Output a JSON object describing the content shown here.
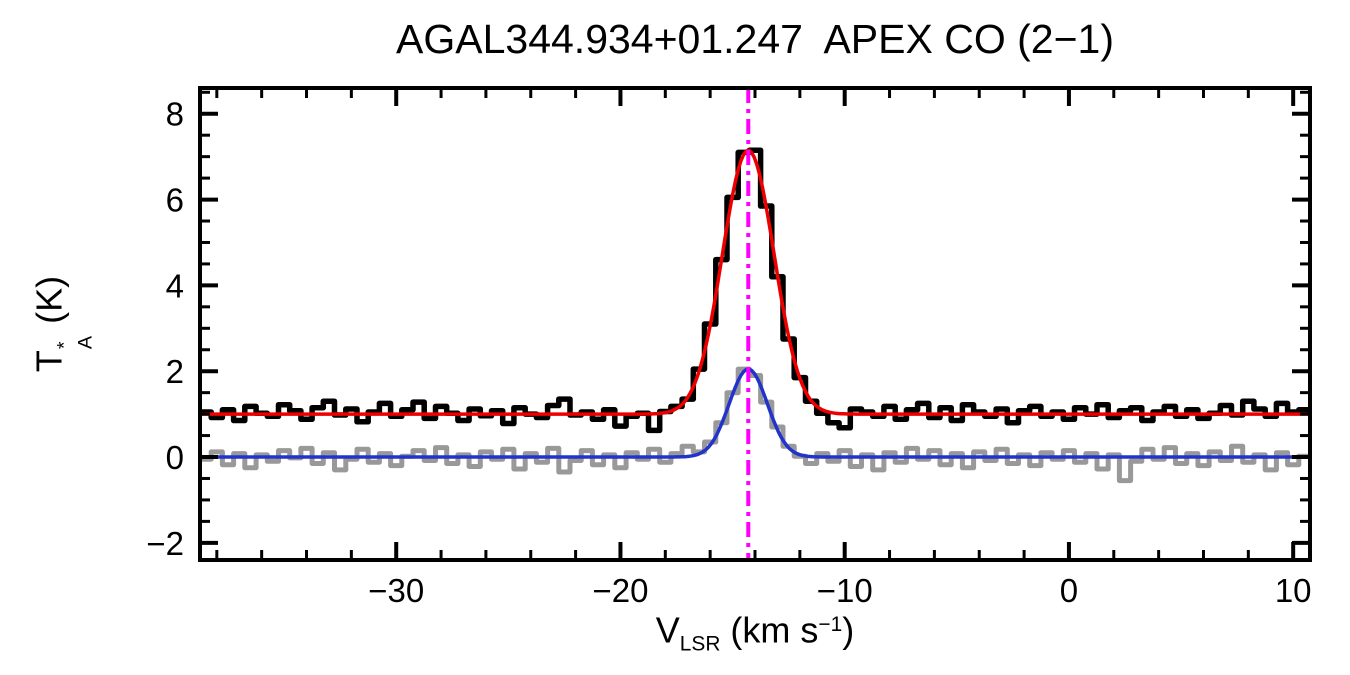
{
  "chart_data": {
    "type": "line",
    "title": "AGAL344.934+01.247  APEX CO (2−1)",
    "xlabel": "V_LSR (km s^−1)",
    "ylabel": "T_A^* (K)",
    "xlabel_parts": {
      "symbol": "V",
      "subscript": "LSR",
      "unit_prefix": "(km s",
      "unit_exponent": "−1",
      "unit_suffix": ")"
    },
    "ylabel_parts": {
      "symbol": "T",
      "superscript": "*",
      "subscript": "A",
      "unit": "(K)"
    },
    "xlim": [
      -38.75,
      10.75
    ],
    "ylim": [
      -2.4,
      8.6
    ],
    "x_ticks": [
      -30,
      -20,
      -10,
      0,
      10
    ],
    "x_tick_labels": [
      "−30",
      "−20",
      "−10",
      "0",
      "10"
    ],
    "x_minor_step": 2,
    "y_ticks": [
      -2,
      0,
      2,
      4,
      6,
      8
    ],
    "y_tick_labels": [
      "−2",
      "0",
      "2",
      "4",
      "6",
      "8"
    ],
    "y_minor_step": 0.5,
    "x_start": -38.5,
    "x_step": 0.5,
    "grid": false,
    "legend": "none",
    "series": [
      {
        "name": "spectrum-gray-histogram",
        "type": "histogram",
        "color": "#999999",
        "width": 5,
        "baseline_level": 0.0,
        "values": [
          -0.05,
          0.12,
          -0.18,
          0.08,
          -0.25,
          0.05,
          -0.1,
          0.15,
          -0.02,
          0.2,
          -0.15,
          0.1,
          -0.3,
          -0.05,
          0.18,
          -0.12,
          0.08,
          -0.2,
          0.02,
          0.15,
          -0.08,
          0.22,
          -0.15,
          0.05,
          -0.22,
          0.12,
          -0.05,
          0.18,
          -0.28,
          0.08,
          -0.12,
          0.2,
          -0.35,
          -0.08,
          0.15,
          -0.18,
          0.05,
          -0.25,
          0.1,
          -0.05,
          0.18,
          -0.12,
          0.08,
          0.25,
          0.12,
          0.35,
          0.8,
          1.5,
          2.05,
          1.9,
          1.28,
          0.7,
          0.25,
          0.02,
          -0.15,
          0.08,
          -0.1,
          0.15,
          -0.22,
          0.05,
          -0.3,
          0.1,
          -0.12,
          0.2,
          -0.05,
          0.15,
          -0.18,
          0.08,
          -0.25,
          0.12,
          -0.08,
          0.18,
          -0.15,
          0.05,
          -0.2,
          0.1,
          -0.05,
          0.15,
          -0.12,
          0.08,
          -0.28,
          0.05,
          -0.55,
          -0.1,
          0.18,
          -0.05,
          0.22,
          -0.15,
          0.08,
          -0.2,
          0.12,
          -0.08,
          0.25,
          -0.12,
          0.05,
          -0.3,
          0.1,
          -0.18,
          0.02
        ]
      },
      {
        "name": "spectrum-black-histogram",
        "type": "histogram",
        "color": "#000000",
        "width": 5.5,
        "baseline_level": 1.0,
        "values": [
          1.05,
          0.92,
          1.1,
          0.85,
          1.18,
          1.02,
          0.95,
          1.22,
          1.08,
          0.88,
          1.15,
          1.3,
          0.98,
          1.12,
          0.82,
          1.05,
          1.25,
          0.95,
          1.1,
          1.28,
          0.9,
          1.18,
          1.02,
          0.85,
          1.12,
          0.96,
          1.08,
          0.78,
          1.15,
          1.0,
          0.92,
          1.2,
          1.35,
          0.98,
          1.05,
          0.88,
          1.1,
          0.72,
          0.95,
          1.02,
          0.62,
          1.06,
          1.18,
          1.35,
          2.05,
          3.1,
          4.6,
          6.05,
          7.1,
          7.15,
          5.85,
          4.2,
          2.75,
          1.85,
          1.3,
          1.02,
          0.8,
          0.68,
          1.12,
          1.05,
          0.95,
          1.18,
          0.88,
          1.1,
          1.25,
          0.92,
          1.15,
          0.85,
          1.22,
          1.05,
          0.95,
          1.12,
          0.8,
          1.08,
          1.18,
          0.95,
          1.05,
          0.88,
          1.15,
          1.0,
          1.22,
          0.92,
          1.08,
          1.15,
          0.85,
          1.05,
          1.18,
          0.95,
          1.1,
          0.9,
          1.02,
          1.2,
          0.98,
          1.3,
          1.12,
          0.95,
          1.25,
          1.05,
          1.1
        ]
      },
      {
        "name": "gaussian-fit-blue",
        "type": "gaussian",
        "color": "#2233cc",
        "width": 3.5,
        "baseline": 0.0,
        "amplitude": 2.05,
        "center": -14.3,
        "sigma": 0.85
      },
      {
        "name": "gaussian-fit-red",
        "type": "gaussian",
        "color": "#ee0000",
        "width": 3.5,
        "baseline": 1.0,
        "amplitude": 6.15,
        "center": -14.3,
        "sigma": 1.15
      }
    ],
    "vline": {
      "x": -14.3,
      "color": "#ff00ff",
      "style": "dash-dot",
      "width": 4
    },
    "frame_color": "#000000",
    "background_color": "#ffffff"
  }
}
